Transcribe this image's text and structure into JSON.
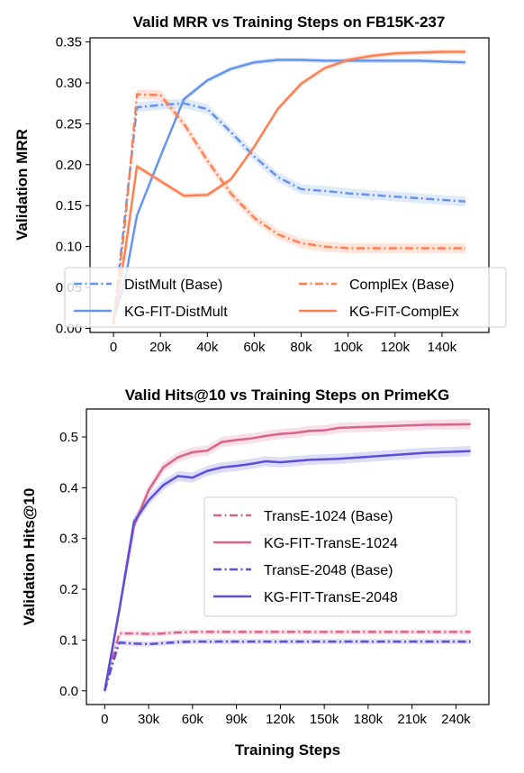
{
  "chart_data": [
    {
      "type": "line",
      "title": "Valid MRR vs Training Steps on FB15K-237",
      "xlabel": "",
      "ylabel": "Validation MRR",
      "xlim": [
        -10000,
        160000
      ],
      "ylim": [
        -0.005,
        0.355
      ],
      "x_ticks": [
        0,
        20000,
        40000,
        60000,
        80000,
        100000,
        120000,
        140000
      ],
      "x_tick_labels": [
        "0",
        "20k",
        "40k",
        "60k",
        "80k",
        "100k",
        "120k",
        "140k"
      ],
      "y_ticks": [
        0.0,
        0.05,
        0.1,
        0.15,
        0.2,
        0.25,
        0.3,
        0.35
      ],
      "y_tick_labels": [
        "0.00",
        "0.05",
        "0.10",
        "0.15",
        "0.20",
        "0.25",
        "0.30",
        "0.35"
      ],
      "grid": false,
      "legend": {
        "placement": "lower-center",
        "columns": 2
      },
      "series": [
        {
          "name": "DistMult (Base)",
          "style": "dashdot",
          "color": "#6495ED",
          "band": 0.006,
          "x": [
            0,
            5000,
            10000,
            20000,
            30000,
            40000,
            50000,
            60000,
            70000,
            80000,
            90000,
            100000,
            110000,
            120000,
            130000,
            140000,
            150000
          ],
          "y": [
            0.01,
            0.14,
            0.27,
            0.273,
            0.275,
            0.268,
            0.24,
            0.21,
            0.185,
            0.17,
            0.168,
            0.165,
            0.163,
            0.161,
            0.159,
            0.157,
            0.155
          ]
        },
        {
          "name": "KG-FIT-DistMult",
          "style": "solid",
          "color": "#6495ED",
          "band": 0.003,
          "x": [
            0,
            5000,
            10000,
            20000,
            30000,
            40000,
            50000,
            60000,
            70000,
            80000,
            90000,
            100000,
            110000,
            120000,
            130000,
            140000,
            150000
          ],
          "y": [
            0.01,
            0.06,
            0.138,
            0.21,
            0.28,
            0.303,
            0.317,
            0.325,
            0.328,
            0.328,
            0.327,
            0.327,
            0.327,
            0.327,
            0.327,
            0.326,
            0.325
          ]
        },
        {
          "name": "ComplEx (Base)",
          "style": "dashdot",
          "color": "#FF7F50",
          "band": 0.006,
          "x": [
            0,
            5000,
            10000,
            20000,
            30000,
            40000,
            50000,
            60000,
            70000,
            80000,
            90000,
            100000,
            110000,
            120000,
            130000,
            140000,
            150000
          ],
          "y": [
            0.005,
            0.13,
            0.286,
            0.285,
            0.25,
            0.205,
            0.165,
            0.135,
            0.115,
            0.104,
            0.1,
            0.098,
            0.098,
            0.098,
            0.098,
            0.098,
            0.098
          ]
        },
        {
          "name": "KG-FIT-ComplEx",
          "style": "solid",
          "color": "#FF7F50",
          "band": 0.003,
          "x": [
            0,
            5000,
            10000,
            20000,
            30000,
            40000,
            50000,
            60000,
            70000,
            80000,
            90000,
            100000,
            110000,
            120000,
            130000,
            140000,
            150000
          ],
          "y": [
            0.005,
            0.095,
            0.198,
            0.18,
            0.162,
            0.163,
            0.182,
            0.222,
            0.268,
            0.299,
            0.318,
            0.328,
            0.333,
            0.336,
            0.337,
            0.338,
            0.338
          ]
        }
      ]
    },
    {
      "type": "line",
      "title": "Valid Hits@10 vs Training Steps on PrimeKG",
      "xlabel": "Training Steps",
      "ylabel": "Validation Hits@10",
      "xlim": [
        -12500,
        262500
      ],
      "ylim": [
        -0.027,
        0.555
      ],
      "x_ticks": [
        0,
        30000,
        60000,
        90000,
        120000,
        150000,
        180000,
        210000,
        240000
      ],
      "x_tick_labels": [
        "0",
        "30k",
        "60k",
        "90k",
        "120k",
        "150k",
        "180k",
        "210k",
        "240k"
      ],
      "y_ticks": [
        0.0,
        0.1,
        0.2,
        0.3,
        0.4,
        0.5
      ],
      "y_tick_labels": [
        "0.0",
        "0.1",
        "0.2",
        "0.3",
        "0.4",
        "0.5"
      ],
      "grid": false,
      "legend": {
        "placement": "center-right",
        "columns": 1
      },
      "series": [
        {
          "name": "TransE-1024 (Base)",
          "style": "dashdot",
          "color": "#D9628E",
          "band": 0.005,
          "x": [
            0,
            5000,
            10000,
            20000,
            30000,
            40000,
            50000,
            60000,
            70000,
            80000,
            100000,
            120000,
            140000,
            160000,
            180000,
            200000,
            220000,
            250000
          ],
          "y": [
            0.0,
            0.06,
            0.113,
            0.113,
            0.112,
            0.113,
            0.115,
            0.116,
            0.116,
            0.116,
            0.116,
            0.116,
            0.116,
            0.116,
            0.116,
            0.116,
            0.116,
            0.116
          ]
        },
        {
          "name": "KG-FIT-TransE-1024",
          "style": "solid",
          "color": "#D9628E",
          "band": 0.01,
          "x": [
            0,
            10000,
            20000,
            30000,
            40000,
            50000,
            60000,
            70000,
            80000,
            90000,
            100000,
            110000,
            120000,
            130000,
            140000,
            150000,
            160000,
            180000,
            200000,
            220000,
            250000
          ],
          "y": [
            0.0,
            0.16,
            0.325,
            0.395,
            0.44,
            0.46,
            0.47,
            0.473,
            0.49,
            0.494,
            0.497,
            0.502,
            0.506,
            0.508,
            0.512,
            0.513,
            0.518,
            0.52,
            0.522,
            0.524,
            0.525
          ]
        },
        {
          "name": "TransE-2048 (Base)",
          "style": "dashdot",
          "color": "#5A4FD8",
          "band": 0.005,
          "x": [
            0,
            5000,
            10000,
            20000,
            30000,
            40000,
            50000,
            60000,
            70000,
            80000,
            100000,
            120000,
            140000,
            160000,
            180000,
            200000,
            220000,
            250000
          ],
          "y": [
            0.0,
            0.05,
            0.095,
            0.093,
            0.092,
            0.094,
            0.096,
            0.097,
            0.097,
            0.097,
            0.097,
            0.097,
            0.097,
            0.097,
            0.097,
            0.097,
            0.097,
            0.097
          ]
        },
        {
          "name": "KG-FIT-TransE-2048",
          "style": "solid",
          "color": "#5A4FD8",
          "band": 0.01,
          "x": [
            0,
            10000,
            20000,
            30000,
            40000,
            50000,
            60000,
            70000,
            80000,
            90000,
            100000,
            110000,
            120000,
            140000,
            160000,
            180000,
            200000,
            220000,
            250000
          ],
          "y": [
            0.0,
            0.16,
            0.333,
            0.375,
            0.405,
            0.423,
            0.42,
            0.433,
            0.44,
            0.443,
            0.447,
            0.452,
            0.45,
            0.455,
            0.457,
            0.461,
            0.465,
            0.469,
            0.472
          ]
        }
      ]
    }
  ]
}
